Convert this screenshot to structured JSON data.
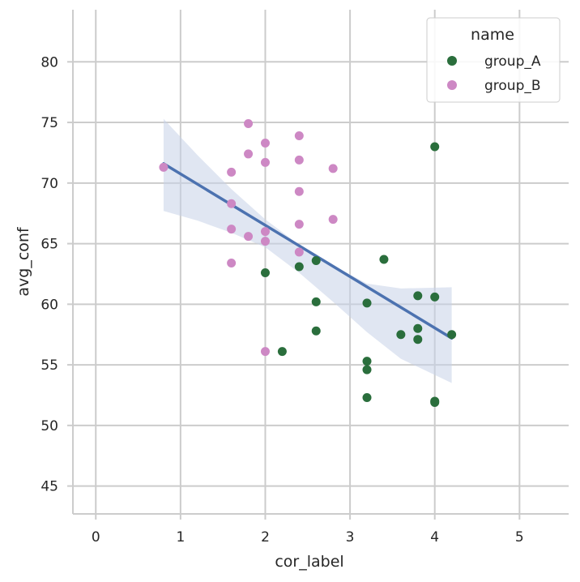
{
  "chart_data": {
    "type": "scatter",
    "xlabel": "cor_label",
    "ylabel": "avg_conf",
    "xlim": [
      -0.27,
      5.58
    ],
    "ylim": [
      42.7,
      84.3
    ],
    "xticks": [
      "0",
      "1",
      "2",
      "3",
      "4",
      "5"
    ],
    "yticks": [
      "45",
      "50",
      "55",
      "60",
      "65",
      "70",
      "75",
      "80"
    ],
    "grid": true,
    "legend": {
      "title": "name",
      "position": "top-right"
    },
    "series": [
      {
        "name": "group_A",
        "color": "#2a6e3c",
        "points": [
          [
            2.0,
            62.6
          ],
          [
            2.2,
            56.1
          ],
          [
            2.4,
            63.1
          ],
          [
            2.6,
            63.6
          ],
          [
            2.6,
            60.2
          ],
          [
            2.6,
            57.8
          ],
          [
            3.2,
            60.1
          ],
          [
            3.2,
            55.3
          ],
          [
            3.2,
            54.6
          ],
          [
            3.2,
            52.3
          ],
          [
            3.4,
            63.7
          ],
          [
            3.6,
            57.5
          ],
          [
            3.8,
            60.7
          ],
          [
            3.8,
            58.0
          ],
          [
            3.8,
            57.1
          ],
          [
            4.0,
            73.0
          ],
          [
            4.0,
            60.6
          ],
          [
            4.0,
            52.0
          ],
          [
            4.0,
            51.9
          ],
          [
            4.2,
            57.5
          ]
        ]
      },
      {
        "name": "group_B",
        "color": "#cd88c4",
        "points": [
          [
            0.8,
            71.3
          ],
          [
            1.6,
            70.9
          ],
          [
            1.6,
            68.3
          ],
          [
            1.6,
            66.2
          ],
          [
            1.6,
            63.4
          ],
          [
            1.8,
            74.9
          ],
          [
            1.8,
            72.4
          ],
          [
            1.8,
            65.6
          ],
          [
            2.0,
            73.3
          ],
          [
            2.0,
            71.7
          ],
          [
            2.0,
            66.0
          ],
          [
            2.0,
            65.2
          ],
          [
            2.0,
            56.1
          ],
          [
            2.4,
            73.9
          ],
          [
            2.4,
            71.9
          ],
          [
            2.4,
            69.3
          ],
          [
            2.4,
            66.6
          ],
          [
            2.4,
            64.3
          ],
          [
            2.8,
            71.2
          ],
          [
            2.8,
            67.0
          ]
        ]
      }
    ],
    "regression": {
      "color": "#4c72b0",
      "band_color": "#c6d2e8",
      "line": [
        [
          0.8,
          71.6
        ],
        [
          4.2,
          57.2
        ]
      ],
      "ci_band": [
        [
          0.8,
          75.3,
          67.7
        ],
        [
          1.2,
          72.3,
          66.9
        ],
        [
          1.6,
          69.5,
          65.9
        ],
        [
          2.0,
          67.0,
          64.7
        ],
        [
          2.4,
          64.9,
          62.6
        ],
        [
          2.8,
          63.2,
          60.2
        ],
        [
          3.2,
          61.7,
          57.7
        ],
        [
          3.6,
          61.3,
          55.5
        ],
        [
          4.2,
          61.4,
          53.5
        ]
      ]
    }
  }
}
